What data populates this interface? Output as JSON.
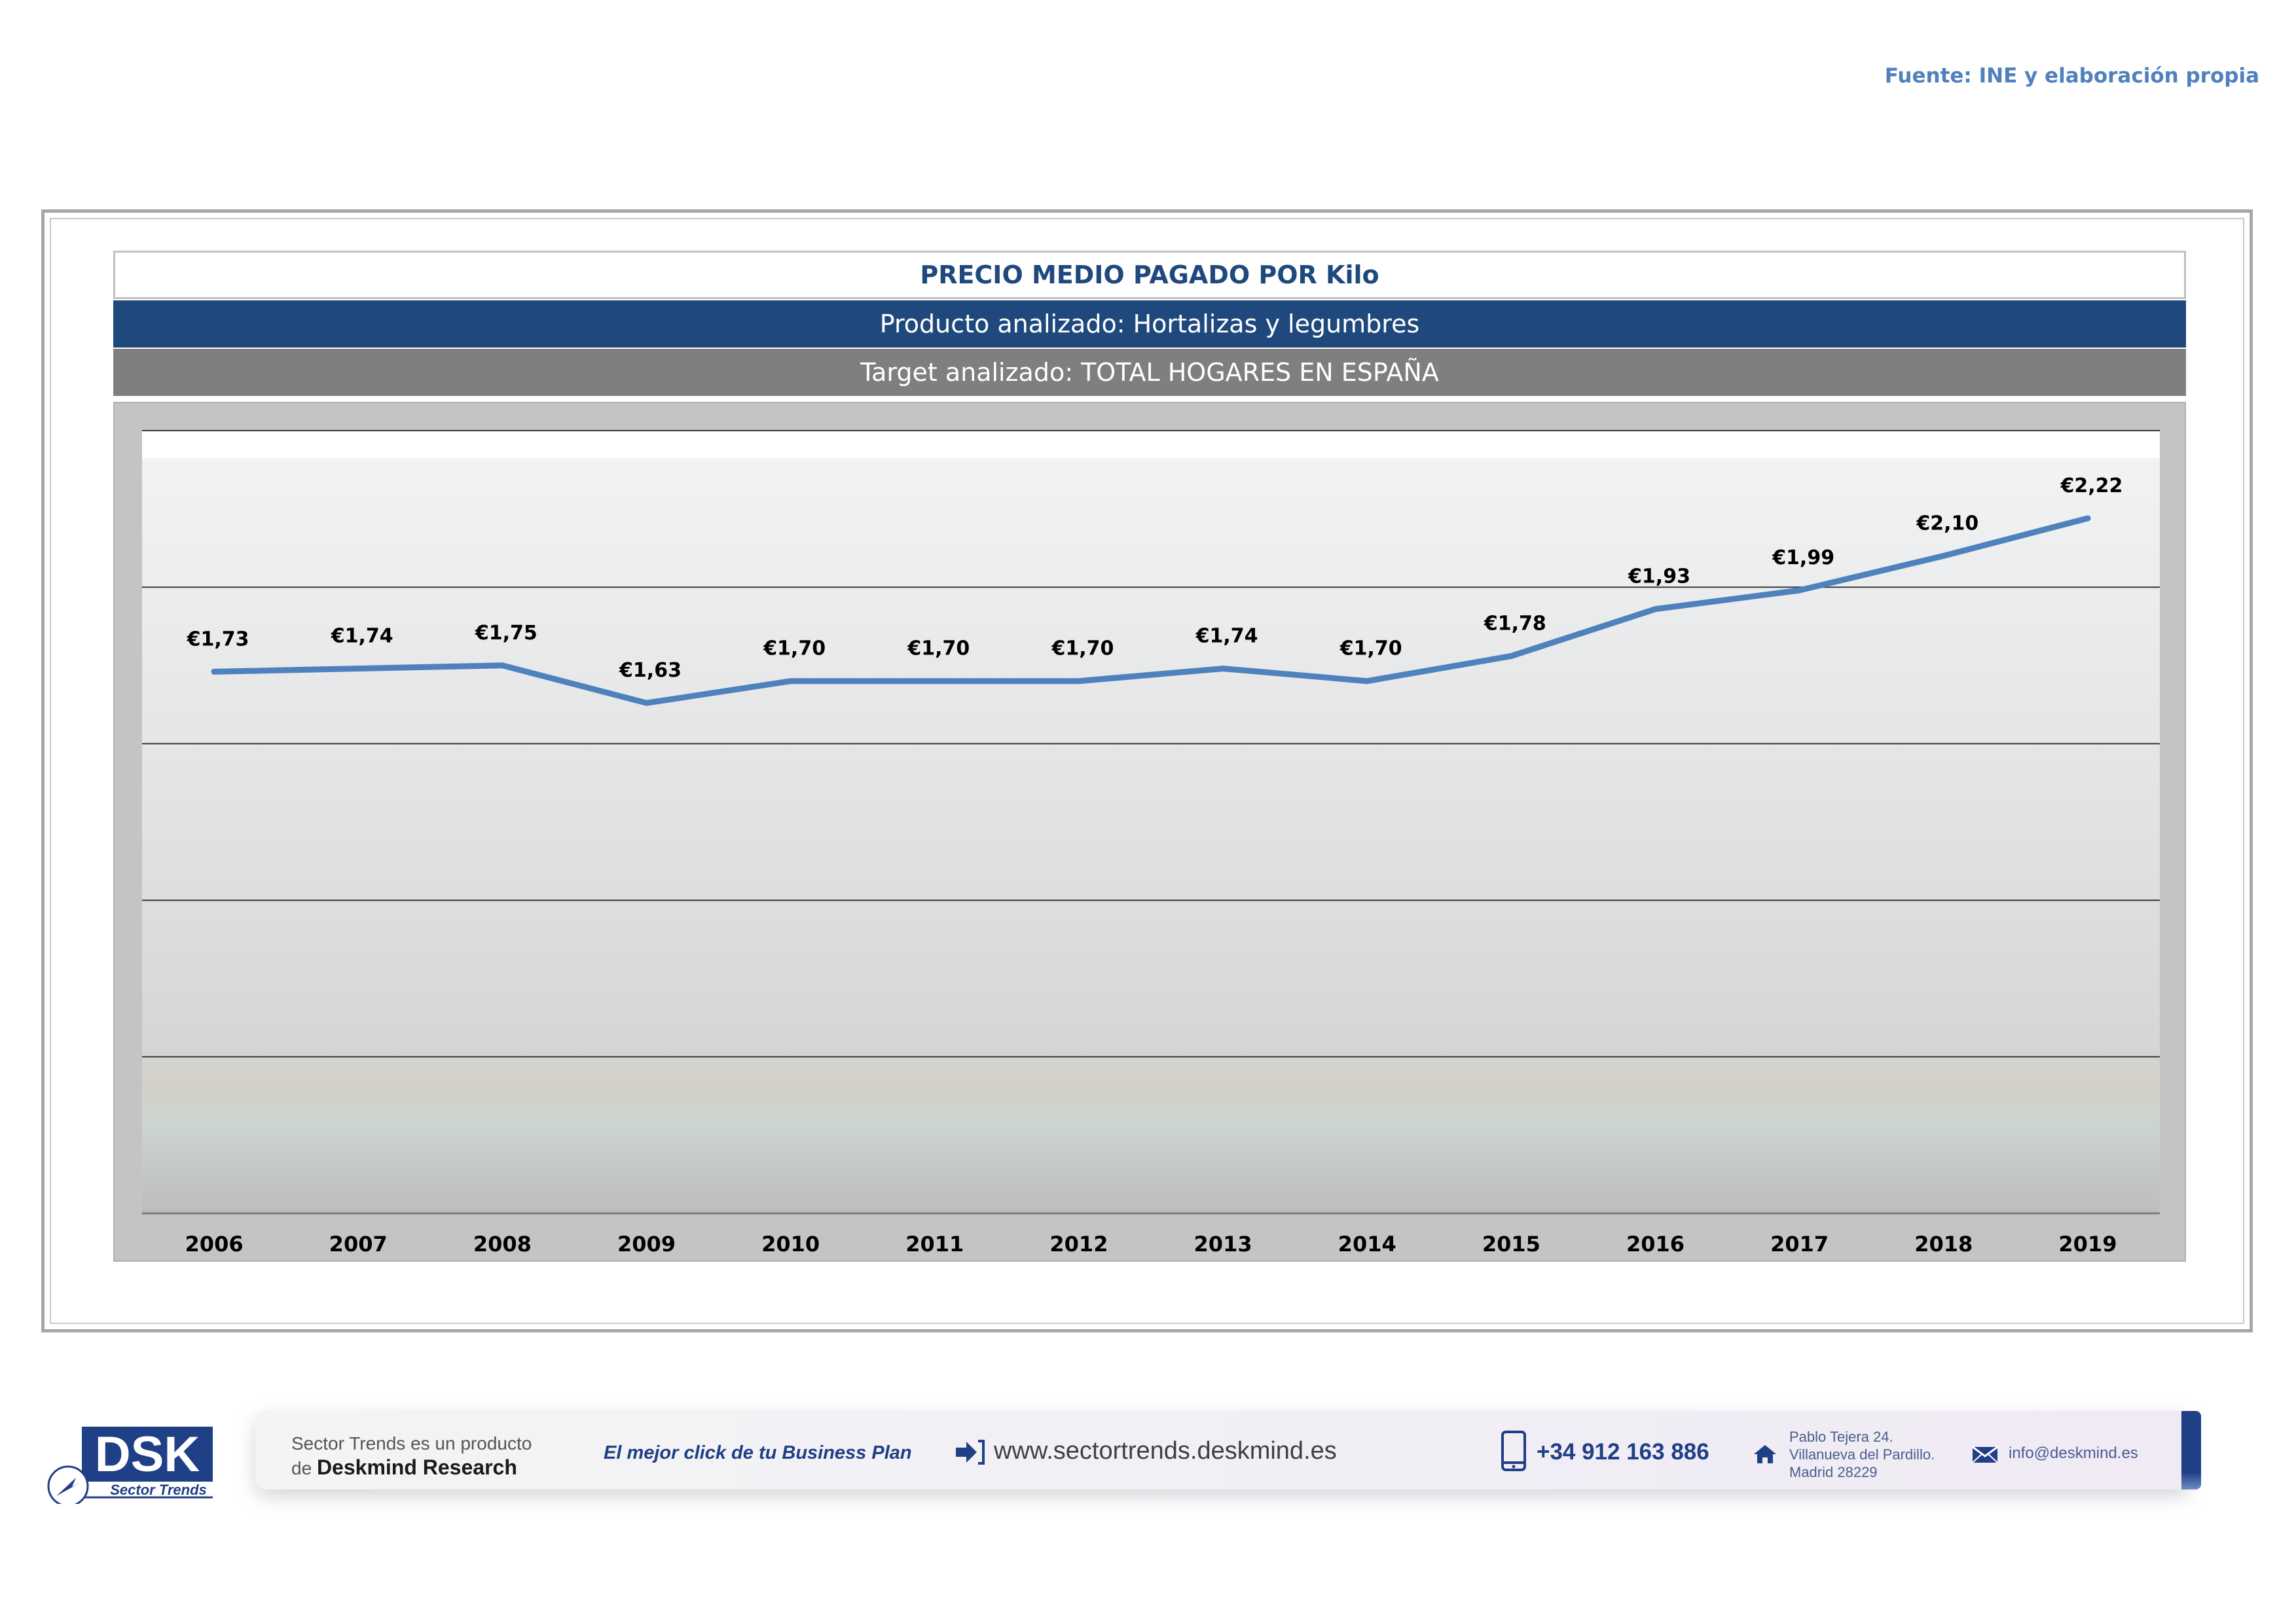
{
  "source_label": "Fuente: INE y elaboración propia",
  "header": {
    "title": "PRECIO MEDIO PAGADO POR Kilo",
    "product": "Producto analizado: Hortalizas y legumbres",
    "target": "Target analizado: TOTAL HOGARES EN ESPAÑA"
  },
  "chart_data": {
    "type": "line",
    "categories": [
      "2006",
      "2007",
      "2008",
      "2009",
      "2010",
      "2011",
      "2012",
      "2013",
      "2014",
      "2015",
      "2016",
      "2017",
      "2018",
      "2019"
    ],
    "series": [
      {
        "values": [
          1.73,
          1.74,
          1.75,
          1.63,
          1.7,
          1.7,
          1.7,
          1.74,
          1.7,
          1.78,
          1.93,
          1.99,
          2.1,
          2.22
        ],
        "labels": [
          "€1,73",
          "€1,74",
          "€1,75",
          "€1,63",
          "€1,70",
          "€1,70",
          "€1,70",
          "€1,74",
          "€1,70",
          "€1,78",
          "€1,93",
          "€1,99",
          "€2,10",
          "€2,22"
        ],
        "color": "#4f81bd"
      }
    ],
    "ylim": [
      0,
      2.5
    ],
    "gridlines": true,
    "legend": "none",
    "label_color": "#000000"
  },
  "footer": {
    "logo_text": "DSK",
    "logo_sub": "Sector Trends",
    "intro_line1": "Sector Trends es un producto",
    "intro_line2_prefix": "de ",
    "intro_line2_brand": "Deskmind Research",
    "slogan": "El mejor click de tu Business Plan",
    "website": "www.sectortrends.deskmind.es",
    "phone": "+34 912 163 886",
    "address_line1": "Pablo Tejera 24.",
    "address_line2": "Villanueva del Pardillo.",
    "address_line3": "Madrid 28229",
    "email": "info@deskmind.es",
    "brand_color": "#1f3f86"
  }
}
